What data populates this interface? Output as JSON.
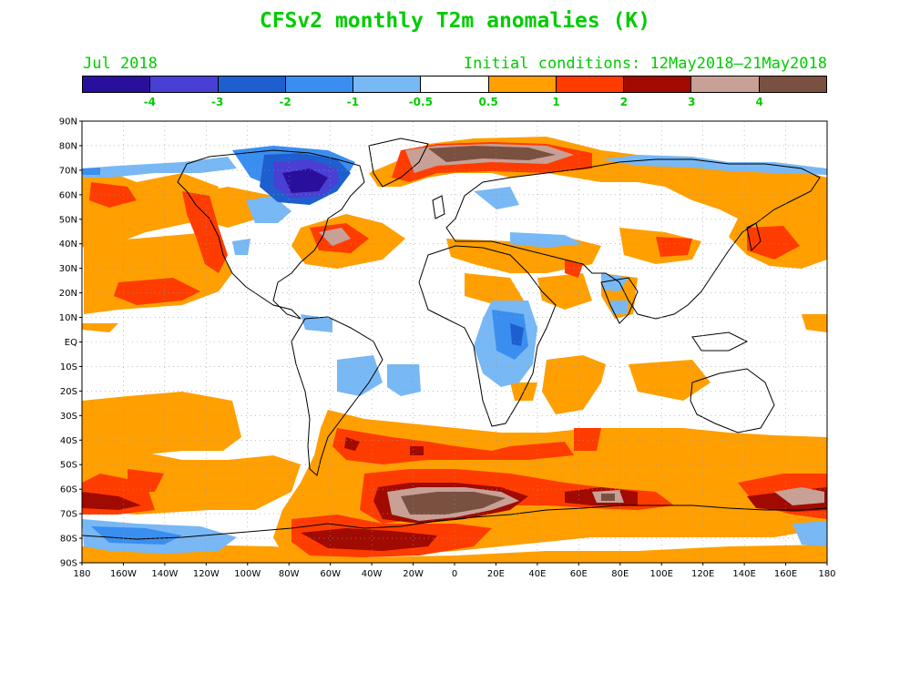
{
  "title": "CFSv2 monthly T2m anomalies (K)",
  "valid_month": "Jul 2018",
  "initial_conditions": "Initial conditions: 12May2018–21May2018",
  "text_color": "#00cc00",
  "colorbar": {
    "colors": [
      "#2a0f9c",
      "#4a3fd4",
      "#1e5fd0",
      "#3a8ef0",
      "#78b8f5",
      "#ffffff",
      "#ff9f00",
      "#ff3c00",
      "#a00a00",
      "#c8a095",
      "#7a5040"
    ],
    "labels": [
      "-4",
      "-3",
      "-2",
      "-1",
      "-0.5",
      "0.5",
      "1",
      "2",
      "3",
      "4"
    ]
  },
  "map": {
    "lat_labels": [
      "90N",
      "80N",
      "70N",
      "60N",
      "50N",
      "40N",
      "30N",
      "20N",
      "10N",
      "EQ",
      "10S",
      "20S",
      "30S",
      "40S",
      "50S",
      "60S",
      "70S",
      "80S",
      "90S"
    ],
    "lon_labels": [
      "180",
      "160W",
      "140W",
      "120W",
      "100W",
      "80W",
      "60W",
      "40W",
      "20W",
      "0",
      "20E",
      "40E",
      "60E",
      "80E",
      "100E",
      "120E",
      "140E",
      "160E",
      "180"
    ]
  }
}
